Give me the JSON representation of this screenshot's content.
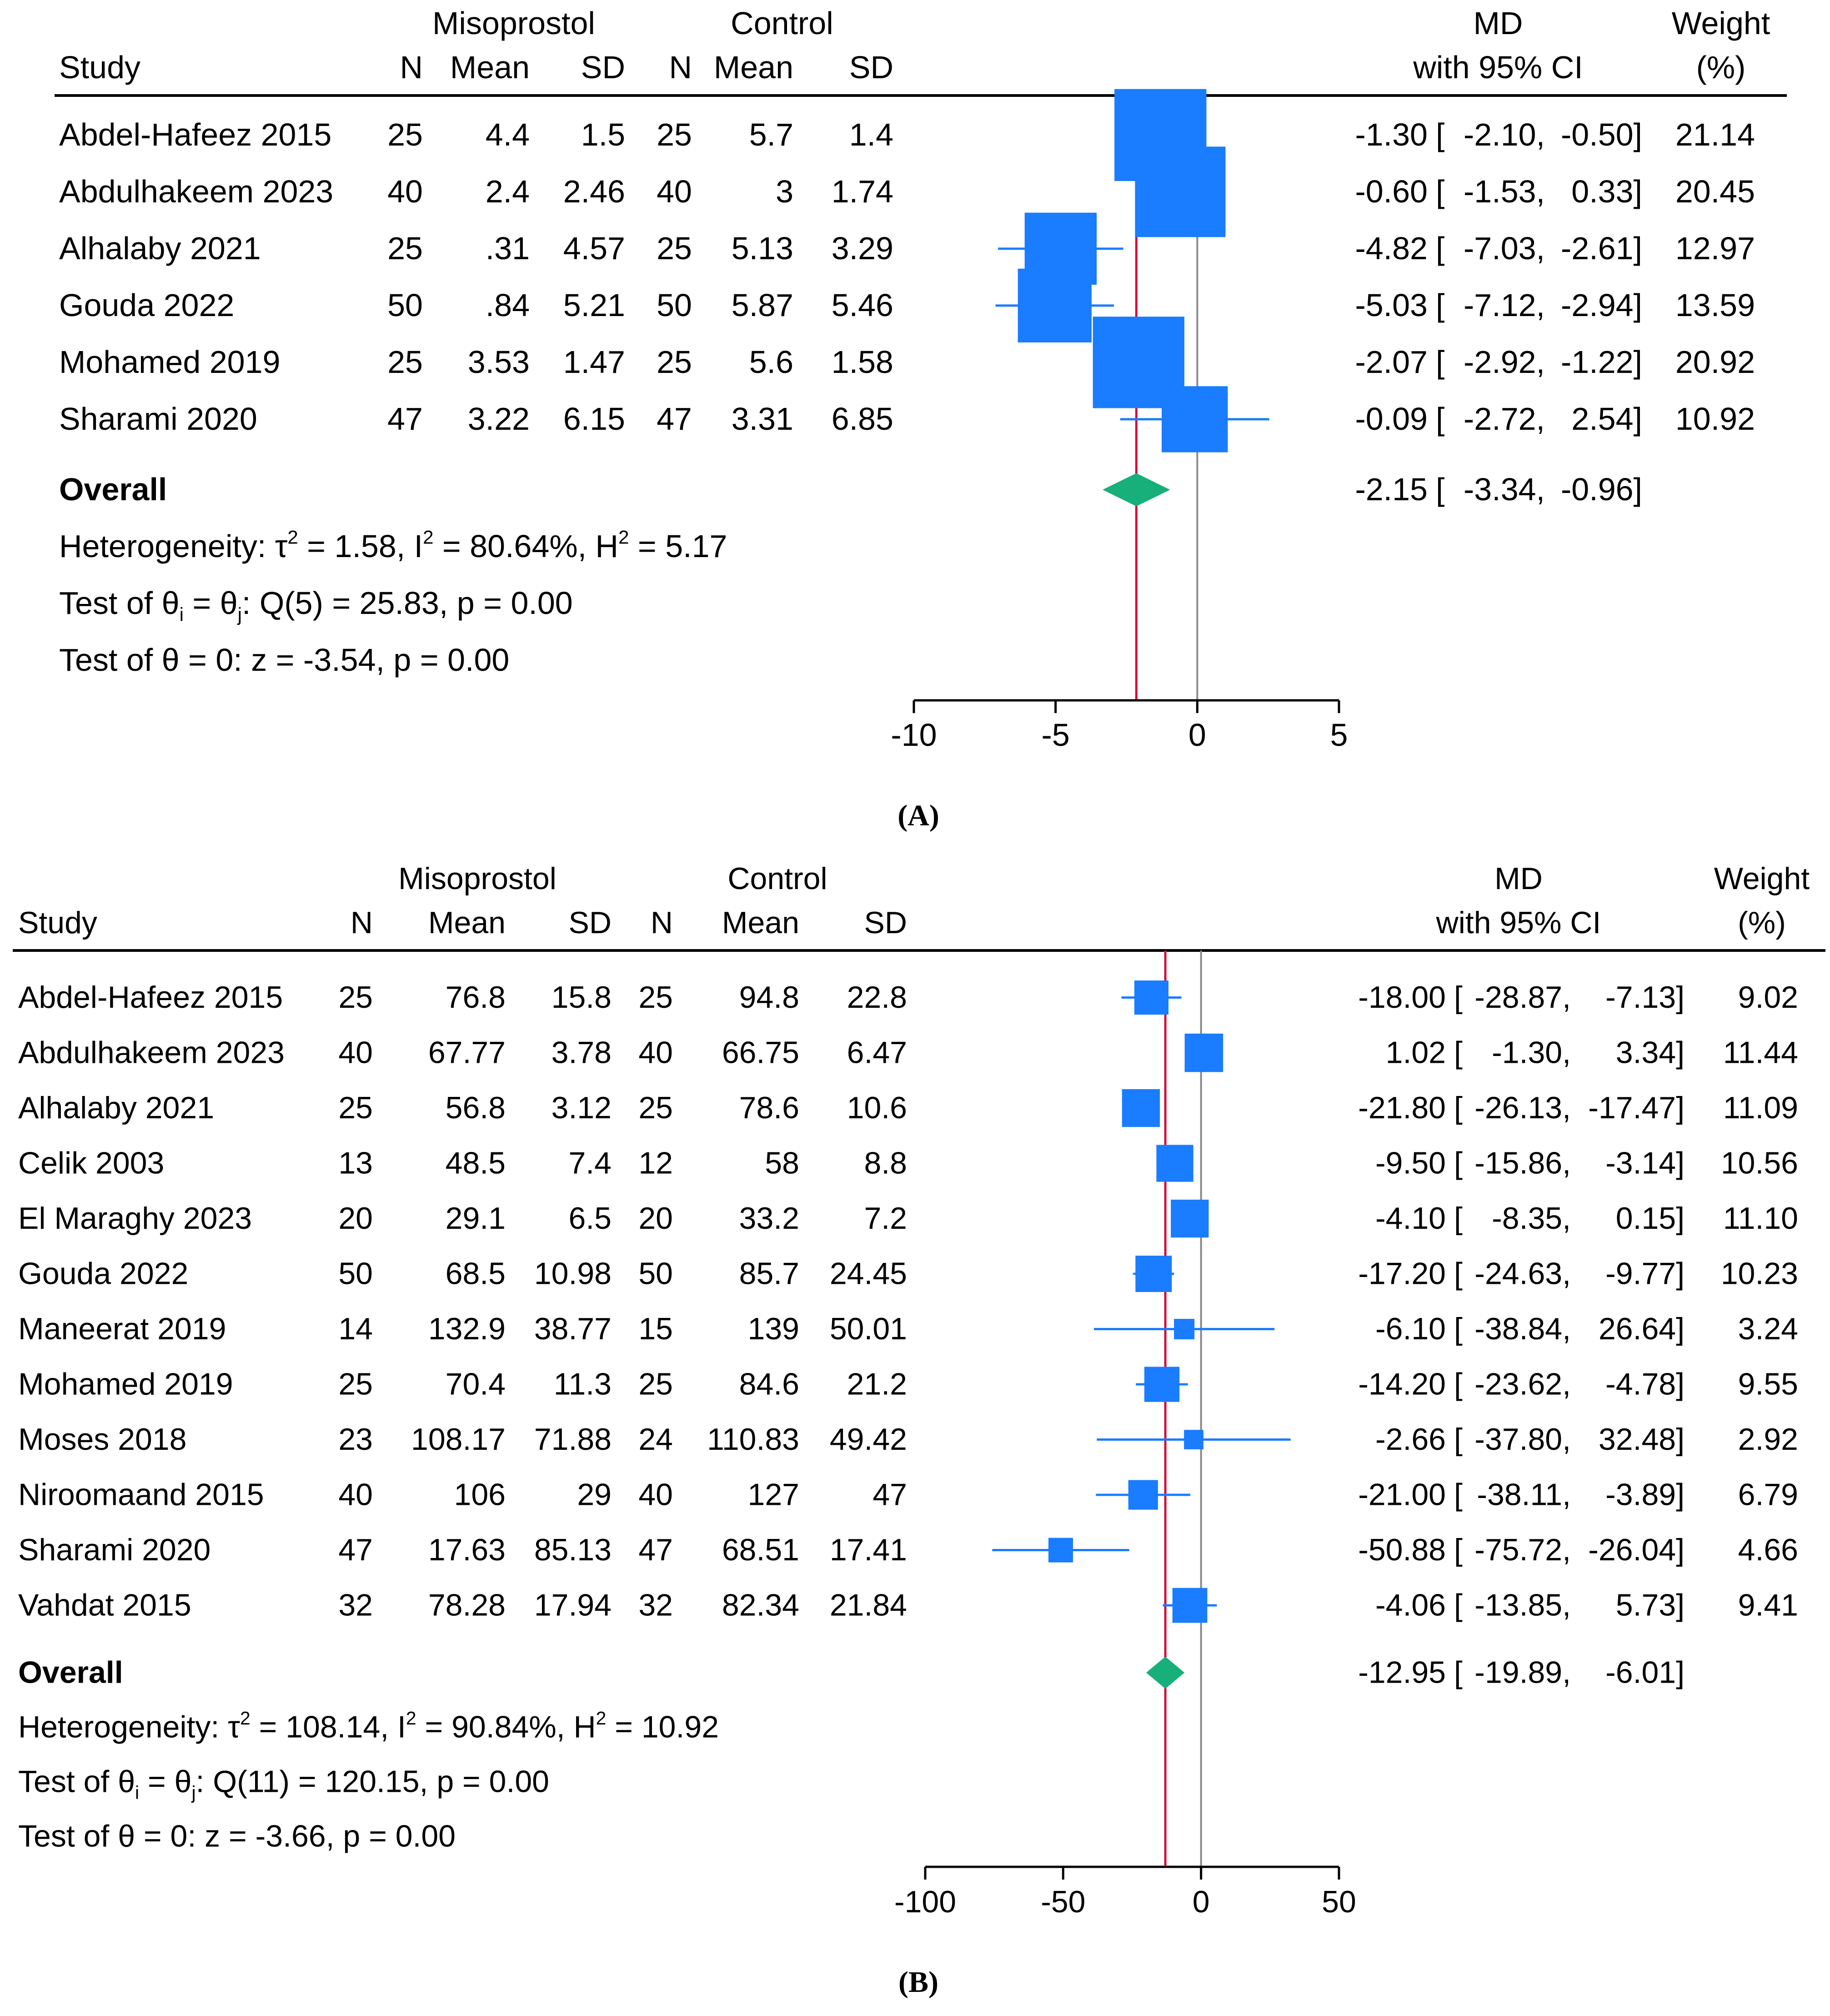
{
  "chart_data": [
    {
      "type": "forest",
      "panel_label": "(A)",
      "group1_header": "Misoprostol",
      "group2_header": "Control",
      "study_header": "Study",
      "n_header": "N",
      "mean_header": "Mean",
      "sd_header": "SD",
      "md_header_1": "MD",
      "md_header_2": "with 95% CI",
      "weight_header_1": "Weight",
      "weight_header_2": "(%)",
      "xlim": [
        -10,
        5
      ],
      "x_ticks": [
        -10,
        -5,
        0,
        5
      ],
      "x_tick_labels": [
        "-10",
        "-5",
        "0",
        "5"
      ],
      "studies": [
        {
          "name": "Abdel-Hafeez 2015",
          "n1": "25",
          "mean1": "4.4",
          "sd1": "1.5",
          "n2": "25",
          "mean2": "5.7",
          "sd2": "1.4",
          "md": -1.3,
          "lo": -2.1,
          "hi": -0.5,
          "weight": 21.14,
          "md_text": "-1.30",
          "lo_text": "-2.10,",
          "hi_text": "-0.50]",
          "weight_text": "21.14"
        },
        {
          "name": "Abdulhakeem 2023",
          "n1": "40",
          "mean1": "2.4",
          "sd1": "2.46",
          "n2": "40",
          "mean2": "3",
          "sd2": "1.74",
          "md": -0.6,
          "lo": -1.53,
          "hi": 0.33,
          "weight": 20.45,
          "md_text": "-0.60",
          "lo_text": "-1.53,",
          "hi_text": "0.33]",
          "weight_text": "20.45"
        },
        {
          "name": "Alhalaby 2021",
          "n1": "25",
          "mean1": ".31",
          "sd1": "4.57",
          "n2": "25",
          "mean2": "5.13",
          "sd2": "3.29",
          "md": -4.82,
          "lo": -7.03,
          "hi": -2.61,
          "weight": 12.97,
          "md_text": "-4.82",
          "lo_text": "-7.03,",
          "hi_text": "-2.61]",
          "weight_text": "12.97"
        },
        {
          "name": "Gouda 2022",
          "n1": "50",
          "mean1": ".84",
          "sd1": "5.21",
          "n2": "50",
          "mean2": "5.87",
          "sd2": "5.46",
          "md": -5.03,
          "lo": -7.12,
          "hi": -2.94,
          "weight": 13.59,
          "md_text": "-5.03",
          "lo_text": "-7.12,",
          "hi_text": "-2.94]",
          "weight_text": "13.59"
        },
        {
          "name": "Mohamed 2019",
          "n1": "25",
          "mean1": "3.53",
          "sd1": "1.47",
          "n2": "25",
          "mean2": "5.6",
          "sd2": "1.58",
          "md": -2.07,
          "lo": -2.92,
          "hi": -1.22,
          "weight": 20.92,
          "md_text": "-2.07",
          "lo_text": "-2.92,",
          "hi_text": "-1.22]",
          "weight_text": "20.92"
        },
        {
          "name": "Sharami 2020",
          "n1": "47",
          "mean1": "3.22",
          "sd1": "6.15",
          "n2": "47",
          "mean2": "3.31",
          "sd2": "6.85",
          "md": -0.09,
          "lo": -2.72,
          "hi": 2.54,
          "weight": 10.92,
          "md_text": "-0.09",
          "lo_text": "-2.72,",
          "hi_text": "2.54]",
          "weight_text": "10.92"
        }
      ],
      "overall": {
        "label": "Overall",
        "md": -2.15,
        "lo": -3.34,
        "hi": -0.96,
        "md_text": "-2.15",
        "lo_text": "-3.34,",
        "hi_text": "-0.96]"
      },
      "stats": {
        "heterogeneity": "Heterogeneity: τ² = 1.58, I² = 80.64%, H² = 5.17",
        "q_test": "Test of θᵢ = θⱼ: Q(5) = 25.83, p = 0.00",
        "z_test": "Test of θ = 0: z = -3.54, p = 0.00"
      },
      "colors": {
        "marker": "#1a7cff",
        "diamond": "#17b07a",
        "overall_line": "#d0103a",
        "null_line": "#888888"
      }
    },
    {
      "type": "forest",
      "panel_label": "(B)",
      "group1_header": "Misoprostol",
      "group2_header": "Control",
      "study_header": "Study",
      "n_header": "N",
      "mean_header": "Mean",
      "sd_header": "SD",
      "md_header_1": "MD",
      "md_header_2": "with 95% CI",
      "weight_header_1": "Weight",
      "weight_header_2": "(%)",
      "xlim": [
        -100,
        50
      ],
      "x_ticks": [
        -100,
        -50,
        0,
        50
      ],
      "x_tick_labels": [
        "-100",
        "-50",
        "0",
        "50"
      ],
      "studies": [
        {
          "name": "Abdel-Hafeez 2015",
          "n1": "25",
          "mean1": "76.8",
          "sd1": "15.8",
          "n2": "25",
          "mean2": "94.8",
          "sd2": "22.8",
          "md": -18.0,
          "lo": -28.87,
          "hi": -7.13,
          "weight": 9.02,
          "md_text": "-18.00",
          "lo_text": "-28.87,",
          "hi_text": "-7.13]",
          "weight_text": "9.02"
        },
        {
          "name": "Abdulhakeem 2023",
          "n1": "40",
          "mean1": "67.77",
          "sd1": "3.78",
          "n2": "40",
          "mean2": "66.75",
          "sd2": "6.47",
          "md": 1.02,
          "lo": -1.3,
          "hi": 3.34,
          "weight": 11.44,
          "md_text": "1.02",
          "lo_text": "-1.30,",
          "hi_text": "3.34]",
          "weight_text": "11.44"
        },
        {
          "name": "Alhalaby 2021",
          "n1": "25",
          "mean1": "56.8",
          "sd1": "3.12",
          "n2": "25",
          "mean2": "78.6",
          "sd2": "10.6",
          "md": -21.8,
          "lo": -26.13,
          "hi": -17.47,
          "weight": 11.09,
          "md_text": "-21.80",
          "lo_text": "-26.13,",
          "hi_text": "-17.47]",
          "weight_text": "11.09"
        },
        {
          "name": "Celik 2003",
          "n1": "13",
          "mean1": "48.5",
          "sd1": "7.4",
          "n2": "12",
          "mean2": "58",
          "sd2": "8.8",
          "md": -9.5,
          "lo": -15.86,
          "hi": -3.14,
          "weight": 10.56,
          "md_text": "-9.50",
          "lo_text": "-15.86,",
          "hi_text": "-3.14]",
          "weight_text": "10.56"
        },
        {
          "name": "El Maraghy 2023",
          "n1": "20",
          "mean1": "29.1",
          "sd1": "6.5",
          "n2": "20",
          "mean2": "33.2",
          "sd2": "7.2",
          "md": -4.1,
          "lo": -8.35,
          "hi": 0.15,
          "weight": 11.1,
          "md_text": "-4.10",
          "lo_text": "-8.35,",
          "hi_text": "0.15]",
          "weight_text": "11.10"
        },
        {
          "name": "Gouda 2022",
          "n1": "50",
          "mean1": "68.5",
          "sd1": "10.98",
          "n2": "50",
          "mean2": "85.7",
          "sd2": "24.45",
          "md": -17.2,
          "lo": -24.63,
          "hi": -9.77,
          "weight": 10.23,
          "md_text": "-17.20",
          "lo_text": "-24.63,",
          "hi_text": "-9.77]",
          "weight_text": "10.23"
        },
        {
          "name": "Maneerat 2019",
          "n1": "14",
          "mean1": "132.9",
          "sd1": "38.77",
          "n2": "15",
          "mean2": "139",
          "sd2": "50.01",
          "md": -6.1,
          "lo": -38.84,
          "hi": 26.64,
          "weight": 3.24,
          "md_text": "-6.10",
          "lo_text": "-38.84,",
          "hi_text": "26.64]",
          "weight_text": "3.24"
        },
        {
          "name": "Mohamed 2019",
          "n1": "25",
          "mean1": "70.4",
          "sd1": "11.3",
          "n2": "25",
          "mean2": "84.6",
          "sd2": "21.2",
          "md": -14.2,
          "lo": -23.62,
          "hi": -4.78,
          "weight": 9.55,
          "md_text": "-14.20",
          "lo_text": "-23.62,",
          "hi_text": "-4.78]",
          "weight_text": "9.55"
        },
        {
          "name": "Moses 2018",
          "n1": "23",
          "mean1": "108.17",
          "sd1": "71.88",
          "n2": "24",
          "mean2": "110.83",
          "sd2": "49.42",
          "md": -2.66,
          "lo": -37.8,
          "hi": 32.48,
          "weight": 2.92,
          "md_text": "-2.66",
          "lo_text": "-37.80,",
          "hi_text": "32.48]",
          "weight_text": "2.92"
        },
        {
          "name": "Niroomaand 2015",
          "n1": "40",
          "mean1": "106",
          "sd1": "29",
          "n2": "40",
          "mean2": "127",
          "sd2": "47",
          "md": -21.0,
          "lo": -38.11,
          "hi": -3.89,
          "weight": 6.79,
          "md_text": "-21.00",
          "lo_text": "-38.11,",
          "hi_text": "-3.89]",
          "weight_text": "6.79"
        },
        {
          "name": "Sharami 2020",
          "n1": "47",
          "mean1": "17.63",
          "sd1": "85.13",
          "n2": "47",
          "mean2": "68.51",
          "sd2": "17.41",
          "md": -50.88,
          "lo": -75.72,
          "hi": -26.04,
          "weight": 4.66,
          "md_text": "-50.88",
          "lo_text": "-75.72,",
          "hi_text": "-26.04]",
          "weight_text": "4.66"
        },
        {
          "name": "Vahdat 2015",
          "n1": "32",
          "mean1": "78.28",
          "sd1": "17.94",
          "n2": "32",
          "mean2": "82.34",
          "sd2": "21.84",
          "md": -4.06,
          "lo": -13.85,
          "hi": 5.73,
          "weight": 9.41,
          "md_text": "-4.06",
          "lo_text": "-13.85,",
          "hi_text": "5.73]",
          "weight_text": "9.41"
        }
      ],
      "overall": {
        "label": "Overall",
        "md": -12.95,
        "lo": -19.89,
        "hi": -6.01,
        "md_text": "-12.95",
        "lo_text": "-19.89,",
        "hi_text": "-6.01]"
      },
      "stats": {
        "heterogeneity": "Heterogeneity: τ² = 108.14, I² = 90.84%, H² = 10.92",
        "q_test": "Test of θᵢ = θⱼ: Q(11) = 120.15, p = 0.00",
        "z_test": "Test of θ = 0: z = -3.66, p = 0.00"
      },
      "colors": {
        "marker": "#1a7cff",
        "diamond": "#17b07a",
        "overall_line": "#d0103a",
        "null_line": "#888888"
      }
    }
  ]
}
